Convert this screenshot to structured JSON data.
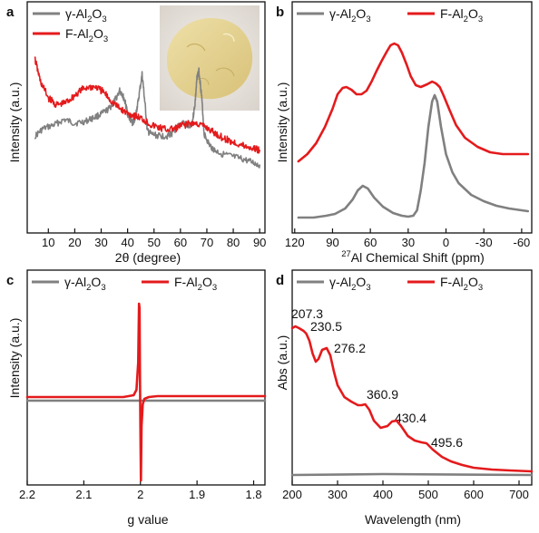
{
  "colors": {
    "gamma": "#808080",
    "fluoro": "#e41a1c"
  },
  "chart_data": [
    {
      "panel": "a",
      "type": "line",
      "xlabel": "2θ (degree)",
      "ylabel": "Intensity (a.u.)",
      "xlim": [
        2,
        92
      ],
      "xticks": [
        10,
        20,
        30,
        40,
        50,
        60,
        70,
        80,
        90
      ],
      "inset": "photo of yellow powder",
      "series": [
        {
          "name": "γ-Al2O3",
          "color": "gamma",
          "noise": 3.5,
          "points": [
            [
              5,
              150
            ],
            [
              8,
              142
            ],
            [
              12,
              138
            ],
            [
              16,
              132
            ],
            [
              20,
              136
            ],
            [
              24,
              134
            ],
            [
              27,
              130
            ],
            [
              30,
              126
            ],
            [
              33,
              120
            ],
            [
              35,
              112
            ],
            [
              37,
              100
            ],
            [
              38,
              104
            ],
            [
              39,
              112
            ],
            [
              40,
              125
            ],
            [
              41,
              132
            ],
            [
              42,
              136
            ],
            [
              43,
              128
            ],
            [
              44,
              112
            ],
            [
              45.5,
              82
            ],
            [
              46.5,
              112
            ],
            [
              47.5,
              145
            ],
            [
              49,
              148
            ],
            [
              52,
              150
            ],
            [
              55,
              150
            ],
            [
              57,
              147
            ],
            [
              59,
              140
            ],
            [
              61,
              135
            ],
            [
              63,
              140
            ],
            [
              64.5,
              135
            ],
            [
              65.5,
              115
            ],
            [
              66.3,
              85
            ],
            [
              67,
              78
            ],
            [
              68,
              105
            ],
            [
              69,
              148
            ],
            [
              71,
              160
            ],
            [
              73,
              166
            ],
            [
              76,
              170
            ],
            [
              80,
              173
            ],
            [
              84,
              176
            ],
            [
              88,
              180
            ],
            [
              90,
              182
            ]
          ]
        },
        {
          "name": "F-Al2O3",
          "color": "fluoro",
          "noise": 4,
          "points": [
            [
              5,
              66
            ],
            [
              7,
              90
            ],
            [
              10,
              108
            ],
            [
              13,
              116
            ],
            [
              16,
              114
            ],
            [
              19,
              108
            ],
            [
              22,
              100
            ],
            [
              25,
              96
            ],
            [
              28,
              96
            ],
            [
              31,
              102
            ],
            [
              34,
              112
            ],
            [
              37,
              120
            ],
            [
              40,
              125
            ],
            [
              43,
              128
            ],
            [
              46,
              132
            ],
            [
              49,
              138
            ],
            [
              52,
              141
            ],
            [
              55,
              143
            ],
            [
              58,
              142
            ],
            [
              61,
              138
            ],
            [
              64,
              136
            ],
            [
              67,
              137
            ],
            [
              70,
              141
            ],
            [
              73,
              147
            ],
            [
              76,
              152
            ],
            [
              79,
              156
            ],
            [
              82,
              159
            ],
            [
              85,
              162
            ],
            [
              88,
              164
            ],
            [
              90,
              166
            ]
          ]
        }
      ],
      "legend": [
        {
          "base": "γ-Al",
          "s1": "2",
          "mid": "O",
          "s2": "3",
          "color": "gamma"
        },
        {
          "base": "F-Al",
          "s1": "2",
          "mid": "O",
          "s2": "3",
          "color": "fluoro"
        }
      ]
    },
    {
      "panel": "b",
      "type": "line",
      "xlabel_sup": "27",
      "xlabel": "Al Chemical Shift (ppm)",
      "ylabel": "Intensity (a.u.)",
      "xlim": [
        122,
        -68
      ],
      "xticks": [
        120,
        90,
        60,
        30,
        0,
        -30,
        -60
      ],
      "series": [
        {
          "name": "γ-Al2O3",
          "color": "gamma",
          "noise": 0,
          "points": [
            [
              117,
              240
            ],
            [
              105,
              240
            ],
            [
              95,
              238
            ],
            [
              88,
              236
            ],
            [
              80,
              230
            ],
            [
              74,
              220
            ],
            [
              70,
              210
            ],
            [
              66,
              205
            ],
            [
              62,
              208
            ],
            [
              57,
              218
            ],
            [
              50,
              228
            ],
            [
              42,
              235
            ],
            [
              35,
              238
            ],
            [
              30,
              239
            ],
            [
              26,
              238
            ],
            [
              23,
              232
            ],
            [
              20,
              210
            ],
            [
              17,
              180
            ],
            [
              14,
              140
            ],
            [
              11,
              112
            ],
            [
              9,
              105
            ],
            [
              7,
              112
            ],
            [
              4,
              140
            ],
            [
              0,
              170
            ],
            [
              -5,
              190
            ],
            [
              -10,
              202
            ],
            [
              -20,
              215
            ],
            [
              -30,
              222
            ],
            [
              -40,
              227
            ],
            [
              -50,
              230
            ],
            [
              -60,
              232
            ],
            [
              -65,
              233
            ]
          ]
        },
        {
          "name": "F-Al2O3",
          "color": "fluoro",
          "noise": 0,
          "points": [
            [
              117,
              178
            ],
            [
              110,
              170
            ],
            [
              103,
              158
            ],
            [
              96,
              140
            ],
            [
              90,
              120
            ],
            [
              86,
              104
            ],
            [
              82,
              97
            ],
            [
              79,
              96
            ],
            [
              75,
              99
            ],
            [
              71,
              104
            ],
            [
              67,
              104
            ],
            [
              63,
              100
            ],
            [
              59,
              90
            ],
            [
              55,
              78
            ],
            [
              51,
              67
            ],
            [
              47,
              57
            ],
            [
              44,
              50
            ],
            [
              41,
              48
            ],
            [
              38,
              50
            ],
            [
              35,
              58
            ],
            [
              31,
              72
            ],
            [
              28,
              84
            ],
            [
              24,
              94
            ],
            [
              20,
              96
            ],
            [
              15,
              93
            ],
            [
              11,
              90
            ],
            [
              8,
              92
            ],
            [
              5,
              96
            ],
            [
              2,
              105
            ],
            [
              -3,
              122
            ],
            [
              -8,
              138
            ],
            [
              -15,
              152
            ],
            [
              -25,
              162
            ],
            [
              -35,
              168
            ],
            [
              -45,
              170
            ],
            [
              -55,
              170
            ],
            [
              -60,
              170
            ],
            [
              -65,
              170
            ]
          ]
        }
      ],
      "legend": [
        {
          "base": "γ-Al",
          "s1": "2",
          "mid": "O",
          "s2": "3",
          "color": "gamma"
        },
        {
          "base": "F-Al",
          "s1": "2",
          "mid": "O",
          "s2": "3",
          "color": "fluoro"
        }
      ]
    },
    {
      "panel": "c",
      "type": "line",
      "xlabel": "g value",
      "ylabel": "Intensity (a.u.)",
      "xlim": [
        2.2,
        1.78
      ],
      "xticks": [
        2.2,
        2.1,
        2.0,
        1.9,
        1.8
      ],
      "series": [
        {
          "name": "γ-Al2O3",
          "color": "gamma",
          "noise": 0,
          "points": [
            [
              2.2,
              442
            ],
            [
              1.78,
              442
            ]
          ]
        },
        {
          "name": "F-Al2O3",
          "color": "fluoro",
          "noise": 0,
          "points": [
            [
              2.2,
              438
            ],
            [
              2.03,
              438
            ],
            [
              2.012,
              436
            ],
            [
              2.007,
              430
            ],
            [
              2.004,
              400
            ],
            [
              2.0025,
              335
            ],
            [
              2.0015,
              340
            ],
            [
              2.0008,
              420
            ],
            [
              2.0,
              480
            ],
            [
              1.9992,
              530
            ],
            [
              1.998,
              470
            ],
            [
              1.996,
              446
            ],
            [
              1.993,
              440
            ],
            [
              1.985,
              438
            ],
            [
              1.97,
              437
            ],
            [
              1.9,
              437
            ],
            [
              1.78,
              437
            ]
          ]
        }
      ],
      "legend": [
        {
          "base": "γ-Al",
          "s1": "2",
          "mid": "O",
          "s2": "3",
          "color": "gamma"
        },
        {
          "base": "F-Al",
          "s1": "2",
          "mid": "O",
          "s2": "3",
          "color": "fluoro"
        }
      ]
    },
    {
      "panel": "d",
      "type": "line",
      "xlabel": "Wavelength (nm)",
      "ylabel": "Abs (a.u.)",
      "xlim": [
        200,
        728
      ],
      "xticks": [
        200,
        300,
        400,
        500,
        600,
        700
      ],
      "series": [
        {
          "name": "γ-Al2O3",
          "color": "gamma",
          "noise": 0,
          "points": [
            [
              200,
              524
            ],
            [
              400,
              523
            ],
            [
              728,
              524
            ]
          ]
        },
        {
          "name": "F-Al2O3",
          "color": "fluoro",
          "noise": 0,
          "points": [
            [
              200,
              362
            ],
            [
              207,
              360
            ],
            [
              215,
              362
            ],
            [
              225,
              365
            ],
            [
              231,
              368
            ],
            [
              238,
              376
            ],
            [
              245,
              390
            ],
            [
              252,
              399
            ],
            [
              258,
              396
            ],
            [
              266,
              386
            ],
            [
              276,
              384
            ],
            [
              284,
              392
            ],
            [
              292,
              410
            ],
            [
              300,
              425
            ],
            [
              315,
              438
            ],
            [
              330,
              443
            ],
            [
              345,
              447
            ],
            [
              353,
              447
            ],
            [
              361,
              446
            ],
            [
              370,
              452
            ],
            [
              380,
              464
            ],
            [
              395,
              472
            ],
            [
              410,
              470
            ],
            [
              420,
              465
            ],
            [
              430,
              464
            ],
            [
              440,
              470
            ],
            [
              455,
              481
            ],
            [
              470,
              486
            ],
            [
              485,
              488
            ],
            [
              496,
              489
            ],
            [
              510,
              496
            ],
            [
              530,
              504
            ],
            [
              550,
              509
            ],
            [
              575,
              513
            ],
            [
              600,
              516
            ],
            [
              640,
              518
            ],
            [
              680,
              519
            ],
            [
              728,
              520
            ]
          ]
        }
      ],
      "annotations": [
        "207.3",
        "230.5",
        "276.2",
        "360.9",
        "430.4",
        "495.6"
      ],
      "legend": [
        {
          "base": "γ-Al",
          "s1": "2",
          "mid": "O",
          "s2": "3",
          "color": "gamma"
        },
        {
          "base": "F-Al",
          "s1": "2",
          "mid": "O",
          "s2": "3",
          "color": "fluoro"
        }
      ]
    }
  ]
}
